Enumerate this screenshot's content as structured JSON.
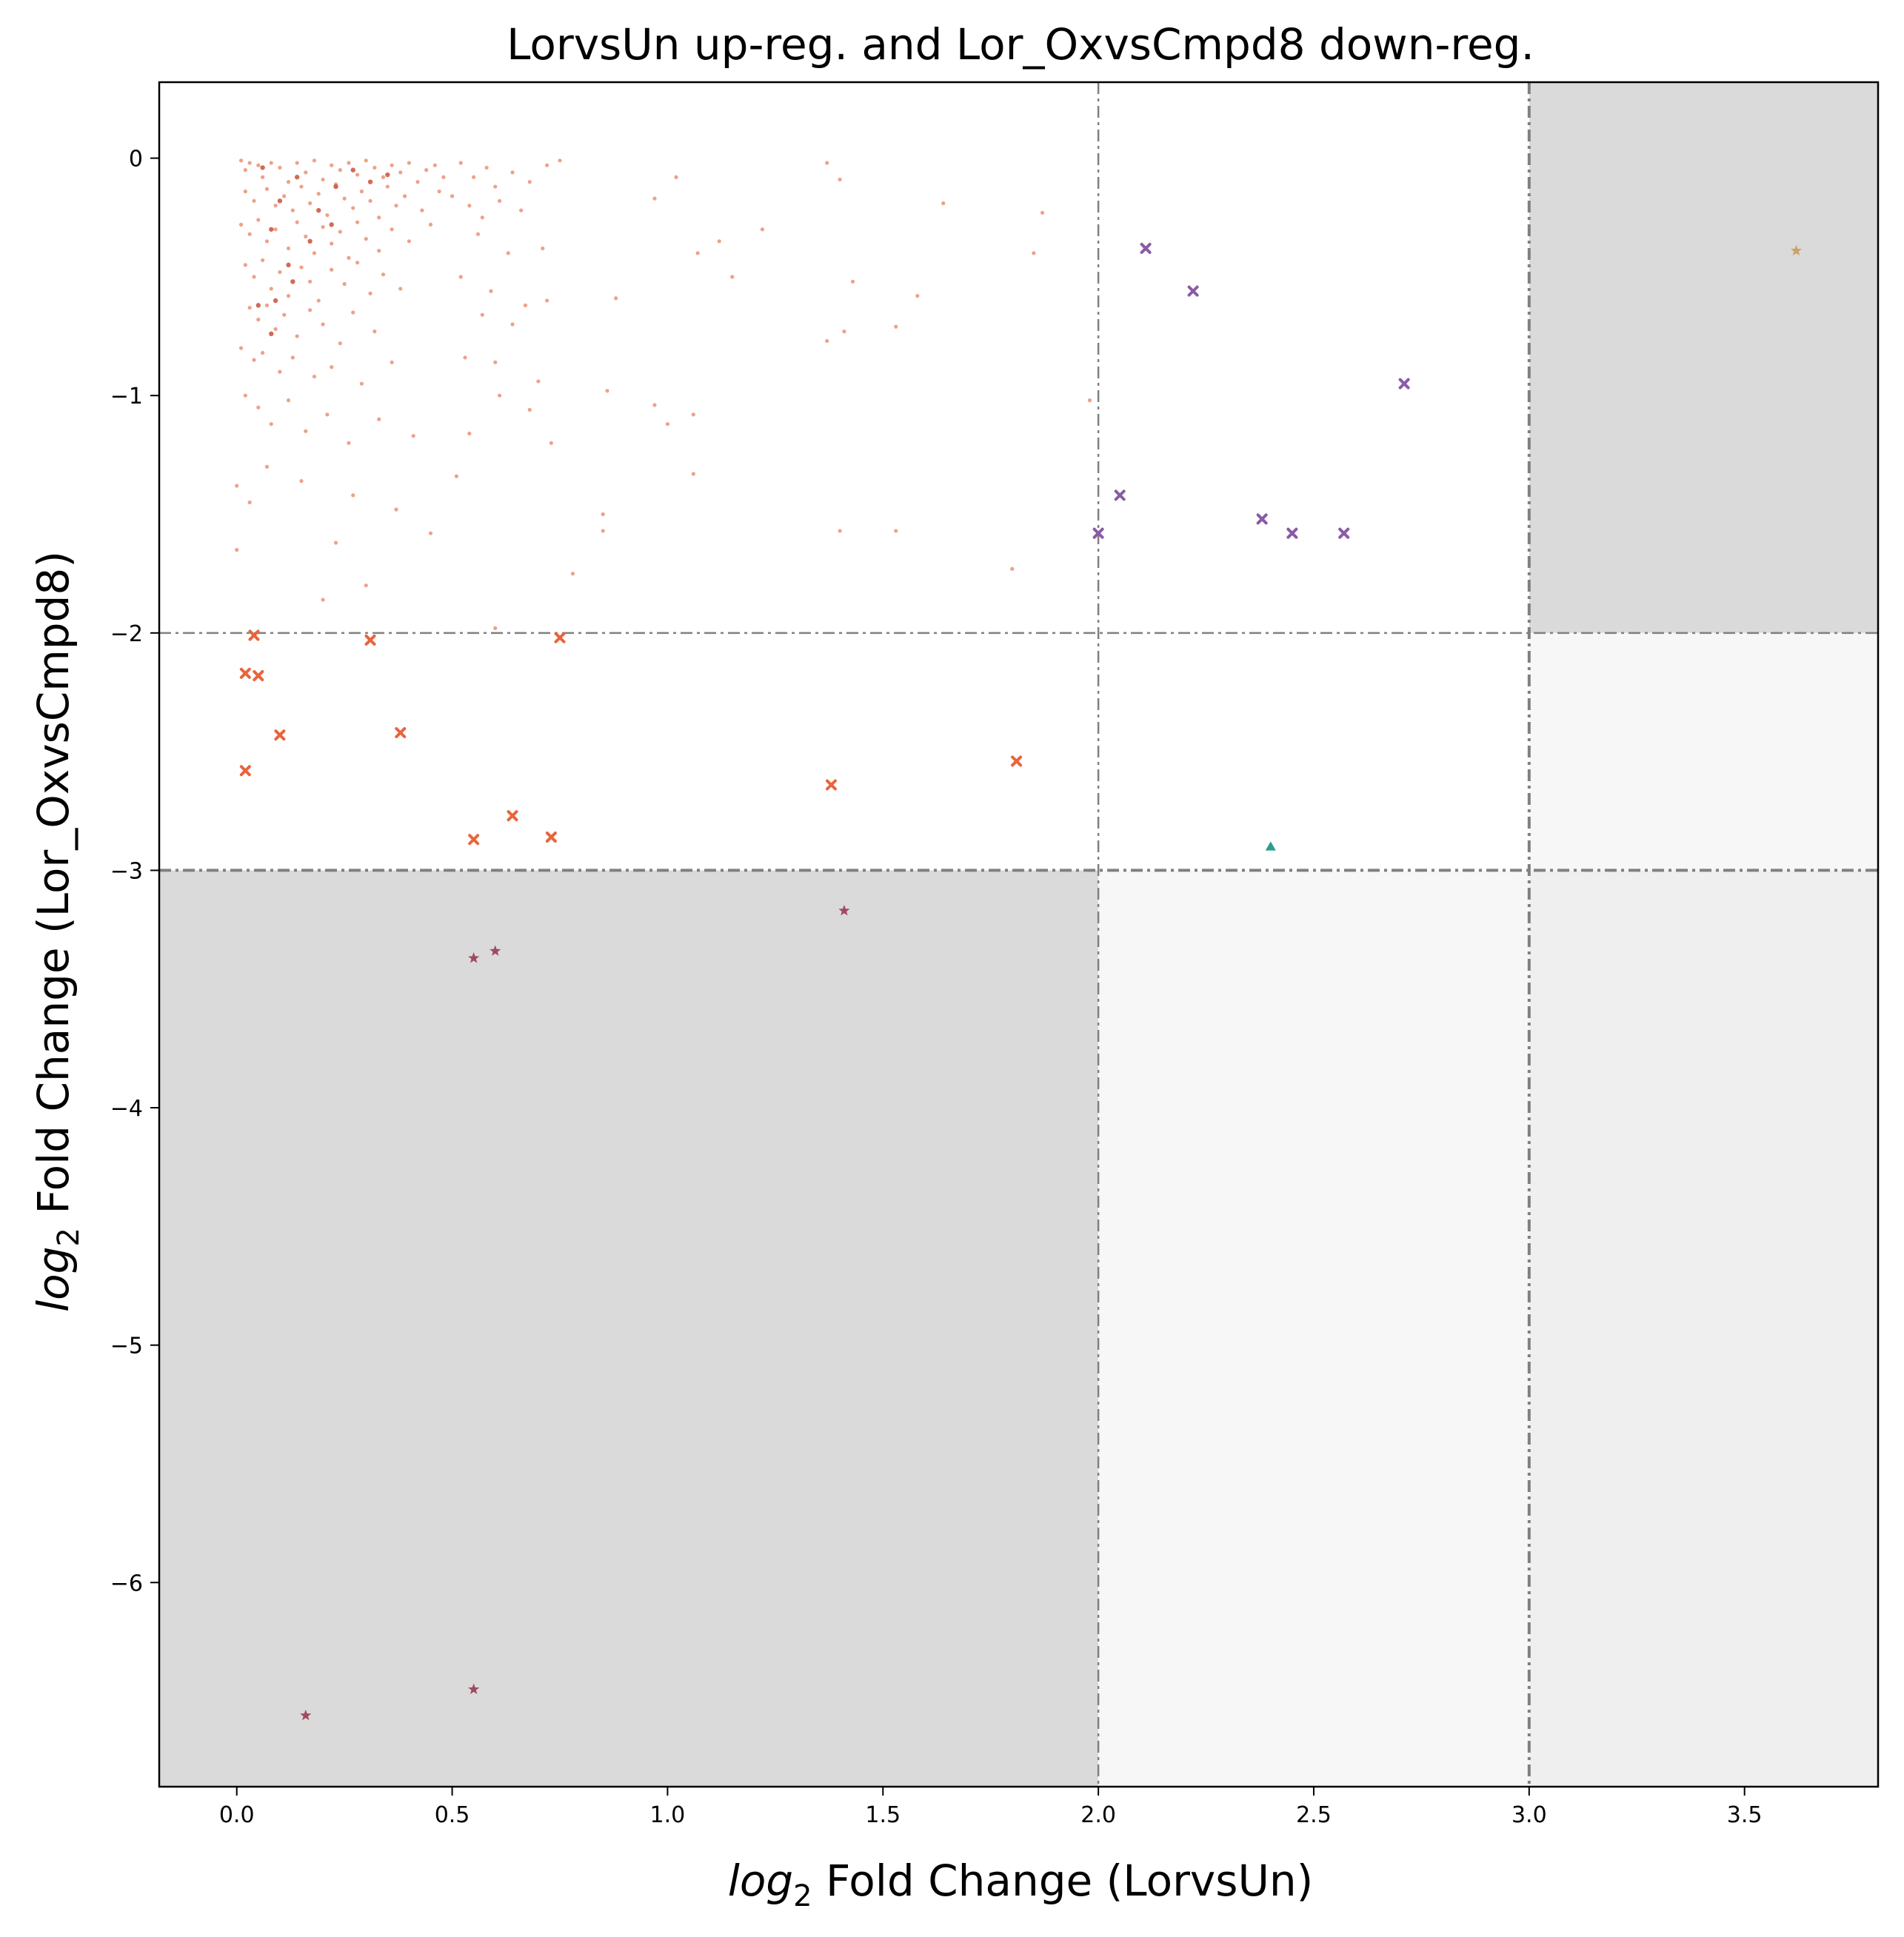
{
  "chart_data": {
    "type": "scatter",
    "title": "LorvsUn up-reg. and Lor_OxvsCmpd8 down-reg.",
    "xlabel": {
      "prefix": "log",
      "subscript": "2",
      "rest": " Fold Change (LorvsUn)"
    },
    "ylabel": {
      "prefix": "log",
      "subscript": "2",
      "rest": " Fold Change (Lor_OxvsCmpd8)"
    },
    "xlim": [
      -0.18,
      3.81
    ],
    "ylim": [
      -6.86,
      0.32
    ],
    "xticks": [
      0.0,
      0.5,
      1.0,
      1.5,
      2.0,
      2.5,
      3.0,
      3.5
    ],
    "xtick_labels": [
      "0.0",
      "0.5",
      "1.0",
      "1.5",
      "2.0",
      "2.5",
      "3.0",
      "3.5"
    ],
    "yticks": [
      0,
      -1,
      -2,
      -3,
      -4,
      -5,
      -6
    ],
    "ytick_labels": [
      "0",
      "−1",
      "−2",
      "−3",
      "−4",
      "−5",
      "−6"
    ],
    "grid": false,
    "legend": "none",
    "thresholds": {
      "x": [
        2.0,
        3.0
      ],
      "y": [
        -2.0,
        -3.0
      ]
    },
    "shaded_regions": [
      {
        "x": [
          -0.18,
          2.0
        ],
        "y": [
          -6.86,
          -3.0
        ],
        "color": "#dadada"
      },
      {
        "x": [
          3.0,
          3.81
        ],
        "y": [
          -2.0,
          0.32
        ],
        "color": "#dadada"
      },
      {
        "x": [
          2.0,
          3.0
        ],
        "y": [
          -6.86,
          -3.0
        ],
        "color": "#f7f7f7"
      },
      {
        "x": [
          3.0,
          3.81
        ],
        "y": [
          -3.0,
          -2.0
        ],
        "color": "#f7f7f7"
      },
      {
        "x": [
          3.0,
          3.81
        ],
        "y": [
          -6.86,
          -3.0
        ],
        "color": "#efefef"
      }
    ],
    "series": [
      {
        "marker": "dot",
        "color": "#e8896a",
        "points": [
          [
            0.01,
            -0.01
          ],
          [
            0.02,
            -0.05
          ],
          [
            0.03,
            -0.02
          ],
          [
            0.05,
            -0.03
          ],
          [
            0.06,
            -0.08
          ],
          [
            0.08,
            -0.02
          ],
          [
            0.1,
            -0.04
          ],
          [
            0.12,
            -0.1
          ],
          [
            0.14,
            -0.02
          ],
          [
            0.16,
            -0.06
          ],
          [
            0.18,
            -0.01
          ],
          [
            0.2,
            -0.09
          ],
          [
            0.22,
            -0.03
          ],
          [
            0.24,
            -0.05
          ],
          [
            0.26,
            -0.02
          ],
          [
            0.28,
            -0.07
          ],
          [
            0.3,
            -0.01
          ],
          [
            0.32,
            -0.04
          ],
          [
            0.34,
            -0.08
          ],
          [
            0.36,
            -0.03
          ],
          [
            0.38,
            -0.06
          ],
          [
            0.4,
            -0.02
          ],
          [
            0.42,
            -0.1
          ],
          [
            0.44,
            -0.05
          ],
          [
            0.46,
            -0.03
          ],
          [
            0.48,
            -0.08
          ],
          [
            0.02,
            -0.14
          ],
          [
            0.04,
            -0.18
          ],
          [
            0.07,
            -0.13
          ],
          [
            0.09,
            -0.2
          ],
          [
            0.11,
            -0.16
          ],
          [
            0.13,
            -0.22
          ],
          [
            0.15,
            -0.12
          ],
          [
            0.17,
            -0.19
          ],
          [
            0.19,
            -0.15
          ],
          [
            0.21,
            -0.24
          ],
          [
            0.23,
            -0.11
          ],
          [
            0.25,
            -0.17
          ],
          [
            0.27,
            -0.21
          ],
          [
            0.29,
            -0.14
          ],
          [
            0.31,
            -0.18
          ],
          [
            0.33,
            -0.25
          ],
          [
            0.35,
            -0.12
          ],
          [
            0.37,
            -0.2
          ],
          [
            0.39,
            -0.16
          ],
          [
            0.43,
            -0.22
          ],
          [
            0.47,
            -0.14
          ],
          [
            0.01,
            -0.28
          ],
          [
            0.03,
            -0.32
          ],
          [
            0.05,
            -0.26
          ],
          [
            0.07,
            -0.35
          ],
          [
            0.09,
            -0.3
          ],
          [
            0.12,
            -0.38
          ],
          [
            0.14,
            -0.27
          ],
          [
            0.16,
            -0.33
          ],
          [
            0.18,
            -0.4
          ],
          [
            0.2,
            -0.29
          ],
          [
            0.22,
            -0.36
          ],
          [
            0.24,
            -0.31
          ],
          [
            0.26,
            -0.42
          ],
          [
            0.28,
            -0.27
          ],
          [
            0.3,
            -0.34
          ],
          [
            0.33,
            -0.39
          ],
          [
            0.36,
            -0.3
          ],
          [
            0.4,
            -0.35
          ],
          [
            0.45,
            -0.28
          ],
          [
            0.02,
            -0.45
          ],
          [
            0.04,
            -0.5
          ],
          [
            0.06,
            -0.43
          ],
          [
            0.08,
            -0.55
          ],
          [
            0.1,
            -0.48
          ],
          [
            0.12,
            -0.58
          ],
          [
            0.15,
            -0.46
          ],
          [
            0.17,
            -0.52
          ],
          [
            0.19,
            -0.6
          ],
          [
            0.22,
            -0.47
          ],
          [
            0.25,
            -0.53
          ],
          [
            0.28,
            -0.44
          ],
          [
            0.31,
            -0.57
          ],
          [
            0.34,
            -0.49
          ],
          [
            0.38,
            -0.55
          ],
          [
            0.03,
            -0.63
          ],
          [
            0.05,
            -0.68
          ],
          [
            0.07,
            -0.62
          ],
          [
            0.09,
            -0.72
          ],
          [
            0.11,
            -0.66
          ],
          [
            0.14,
            -0.75
          ],
          [
            0.17,
            -0.64
          ],
          [
            0.2,
            -0.7
          ],
          [
            0.24,
            -0.78
          ],
          [
            0.27,
            -0.65
          ],
          [
            0.32,
            -0.73
          ],
          [
            0.01,
            -0.8
          ],
          [
            0.04,
            -0.85
          ],
          [
            0.06,
            -0.82
          ],
          [
            0.1,
            -0.9
          ],
          [
            0.13,
            -0.84
          ],
          [
            0.18,
            -0.92
          ],
          [
            0.22,
            -0.88
          ],
          [
            0.29,
            -0.95
          ],
          [
            0.36,
            -0.86
          ],
          [
            0.02,
            -1.0
          ],
          [
            0.05,
            -1.05
          ],
          [
            0.08,
            -1.12
          ],
          [
            0.12,
            -1.02
          ],
          [
            0.16,
            -1.15
          ],
          [
            0.21,
            -1.08
          ],
          [
            0.26,
            -1.2
          ],
          [
            0.33,
            -1.1
          ],
          [
            0.41,
            -1.17
          ],
          [
            0.0,
            -1.38
          ],
          [
            0.03,
            -1.45
          ],
          [
            0.07,
            -1.3
          ],
          [
            0.15,
            -1.36
          ],
          [
            0.27,
            -1.42
          ],
          [
            0.37,
            -1.48
          ],
          [
            0.0,
            -1.65
          ],
          [
            0.23,
            -1.62
          ],
          [
            0.45,
            -1.58
          ],
          [
            0.2,
            -1.86
          ],
          [
            0.3,
            -1.8
          ],
          [
            0.6,
            -1.98
          ],
          [
            0.52,
            -0.02
          ],
          [
            0.55,
            -0.08
          ],
          [
            0.58,
            -0.04
          ],
          [
            0.6,
            -0.12
          ],
          [
            0.64,
            -0.06
          ],
          [
            0.68,
            -0.1
          ],
          [
            0.72,
            -0.03
          ],
          [
            0.75,
            -0.01
          ],
          [
            0.5,
            -0.16
          ],
          [
            0.54,
            -0.2
          ],
          [
            0.57,
            -0.25
          ],
          [
            0.61,
            -0.18
          ],
          [
            0.66,
            -0.22
          ],
          [
            0.71,
            -0.38
          ],
          [
            0.56,
            -0.32
          ],
          [
            0.63,
            -0.4
          ],
          [
            0.52,
            -0.5
          ],
          [
            0.59,
            -0.56
          ],
          [
            0.67,
            -0.62
          ],
          [
            0.72,
            -0.6
          ],
          [
            0.57,
            -0.66
          ],
          [
            0.64,
            -0.7
          ],
          [
            0.53,
            -0.84
          ],
          [
            0.6,
            -0.86
          ],
          [
            0.7,
            -0.94
          ],
          [
            0.61,
            -1.0
          ],
          [
            0.68,
            -1.06
          ],
          [
            0.54,
            -1.16
          ],
          [
            0.51,
            -1.34
          ],
          [
            0.73,
            -1.2
          ],
          [
            0.78,
            -1.75
          ],
          [
            0.85,
            -1.5
          ],
          [
            0.85,
            -1.57
          ],
          [
            0.86,
            -0.98
          ],
          [
            0.88,
            -0.59
          ],
          [
            0.97,
            -0.17
          ],
          [
            0.97,
            -1.04
          ],
          [
            1.02,
            -0.08
          ],
          [
            1.0,
            -1.12
          ],
          [
            1.06,
            -1.08
          ],
          [
            1.06,
            -1.33
          ],
          [
            1.07,
            -0.4
          ],
          [
            1.12,
            -0.35
          ],
          [
            1.15,
            -0.5
          ],
          [
            1.22,
            -0.3
          ],
          [
            1.37,
            -0.02
          ],
          [
            1.37,
            -0.77
          ],
          [
            1.4,
            -0.09
          ],
          [
            1.4,
            -1.57
          ],
          [
            1.41,
            -0.73
          ],
          [
            1.43,
            -0.52
          ],
          [
            1.53,
            -0.71
          ],
          [
            1.53,
            -1.57
          ],
          [
            1.58,
            -0.58
          ],
          [
            1.64,
            -0.19
          ],
          [
            1.8,
            -1.73
          ],
          [
            1.85,
            -0.4
          ],
          [
            1.87,
            -0.23
          ],
          [
            1.98,
            -1.02
          ]
        ]
      },
      {
        "marker": "dot-dark",
        "color": "#c8452c",
        "points": [
          [
            0.06,
            -0.04
          ],
          [
            0.1,
            -0.18
          ],
          [
            0.14,
            -0.08
          ],
          [
            0.19,
            -0.22
          ],
          [
            0.23,
            -0.12
          ],
          [
            0.27,
            -0.05
          ],
          [
            0.31,
            -0.1
          ],
          [
            0.35,
            -0.07
          ],
          [
            0.08,
            -0.3
          ],
          [
            0.12,
            -0.45
          ],
          [
            0.17,
            -0.35
          ],
          [
            0.09,
            -0.6
          ],
          [
            0.13,
            -0.52
          ],
          [
            0.08,
            -0.74
          ],
          [
            0.05,
            -0.62
          ],
          [
            0.22,
            -0.28
          ]
        ]
      },
      {
        "marker": "x",
        "color": "#e8643c",
        "points": [
          [
            0.02,
            -2.17
          ],
          [
            0.04,
            -2.01
          ],
          [
            0.05,
            -2.18
          ],
          [
            0.02,
            -2.58
          ],
          [
            0.1,
            -2.43
          ],
          [
            0.31,
            -2.03
          ],
          [
            0.38,
            -2.42
          ],
          [
            0.55,
            -2.87
          ],
          [
            0.64,
            -2.77
          ],
          [
            0.73,
            -2.86
          ],
          [
            0.75,
            -2.02
          ],
          [
            1.38,
            -2.64
          ],
          [
            1.81,
            -2.54
          ]
        ]
      },
      {
        "marker": "x",
        "color": "#8a5aa8",
        "points": [
          [
            2.0,
            -1.58
          ],
          [
            2.05,
            -1.42
          ],
          [
            2.11,
            -0.38
          ],
          [
            2.22,
            -0.56
          ],
          [
            2.38,
            -1.52
          ],
          [
            2.45,
            -1.58
          ],
          [
            2.57,
            -1.58
          ],
          [
            2.71,
            -0.95
          ]
        ]
      },
      {
        "marker": "triangle",
        "color": "#2a9d8f",
        "points": [
          [
            2.4,
            -2.9
          ]
        ]
      },
      {
        "marker": "star",
        "color": "#a04a5f",
        "points": [
          [
            0.55,
            -3.37
          ],
          [
            0.6,
            -3.34
          ],
          [
            1.41,
            -3.17
          ],
          [
            0.16,
            -6.56
          ],
          [
            0.55,
            -6.45
          ]
        ]
      },
      {
        "marker": "star",
        "color": "#c9a16a",
        "points": [
          [
            3.62,
            -0.39
          ]
        ]
      }
    ]
  }
}
